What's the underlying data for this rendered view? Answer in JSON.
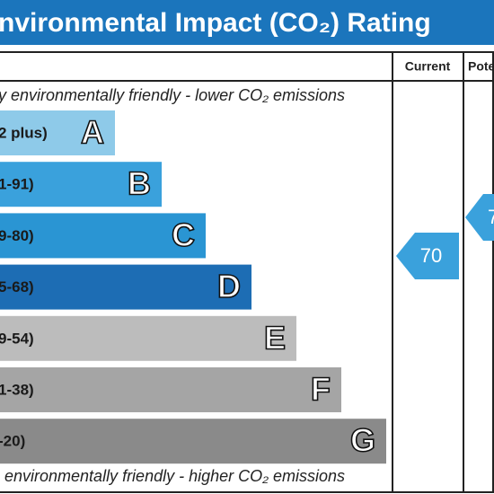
{
  "header": {
    "title": "nvironmental Impact (CO₂) Rating"
  },
  "columns": {
    "current": "Current",
    "potential": "Pote"
  },
  "top_note": "y environmentally friendly - lower CO₂ emissions",
  "bottom_note": "environmentally friendly - higher CO₂ emissions",
  "bands": [
    {
      "range": "2 plus)",
      "letter": "A"
    },
    {
      "range": "1-91)",
      "letter": "B"
    },
    {
      "range": "9-80)",
      "letter": "C"
    },
    {
      "range": "5-68)",
      "letter": "D"
    },
    {
      "range": "9-54)",
      "letter": "E"
    },
    {
      "range": "1-38)",
      "letter": "F"
    },
    {
      "range": "-20)",
      "letter": "G"
    }
  ],
  "current_rating": "70",
  "potential_rating": "7"
}
